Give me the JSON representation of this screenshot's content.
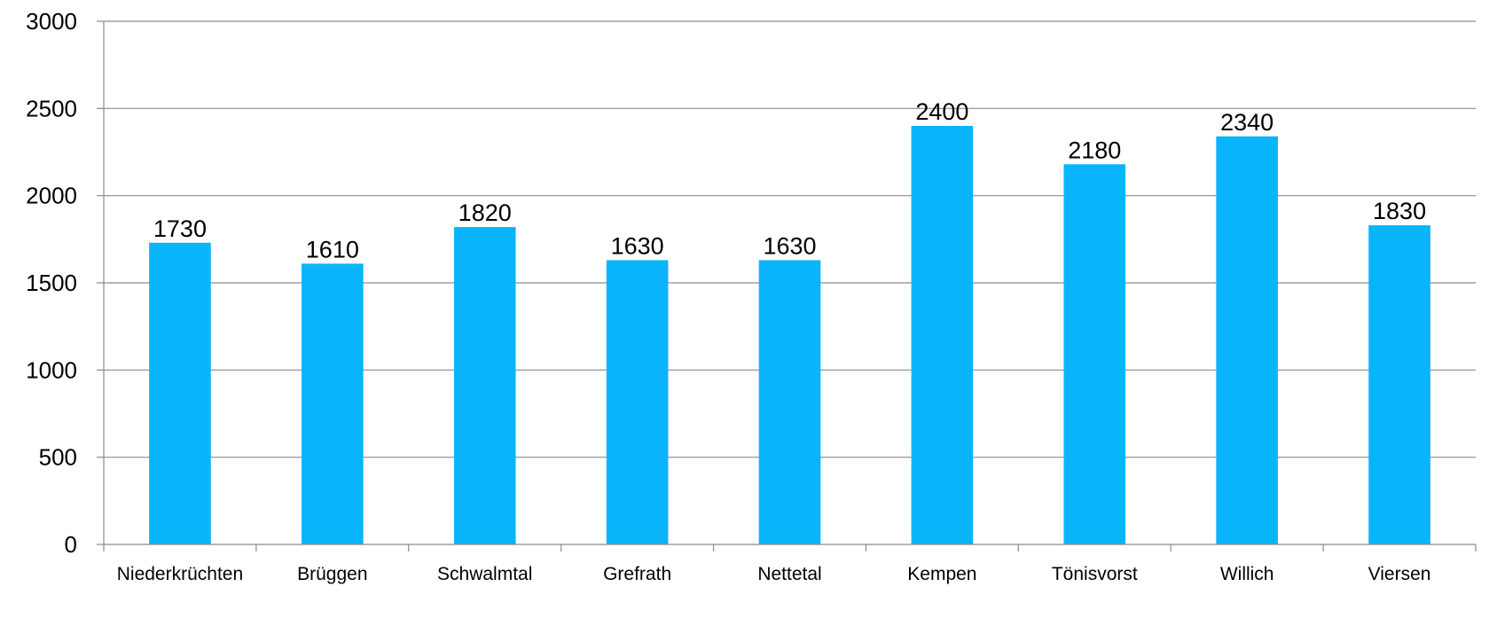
{
  "chart_data": {
    "type": "bar",
    "title": "",
    "xlabel": "",
    "ylabel": "",
    "categories": [
      "Niederkrüchten",
      "Brüggen",
      "Schwalmtal",
      "Grefrath",
      "Nettetal",
      "Kempen",
      "Tönisvorst",
      "Willich",
      "Viersen"
    ],
    "values": [
      1730,
      1610,
      1820,
      1630,
      1630,
      2400,
      2180,
      2340,
      1830
    ],
    "data_labels": [
      "1730",
      "1610",
      "1820",
      "1630",
      "1630",
      "2400",
      "2180",
      "2340",
      "1830"
    ],
    "y_ticks": [
      "0",
      "500",
      "1000",
      "1500",
      "2000",
      "2500",
      "3000"
    ],
    "ylim": [
      0,
      3000
    ],
    "grid": true,
    "legend": "none",
    "bar_color": "#0AB4FA"
  }
}
